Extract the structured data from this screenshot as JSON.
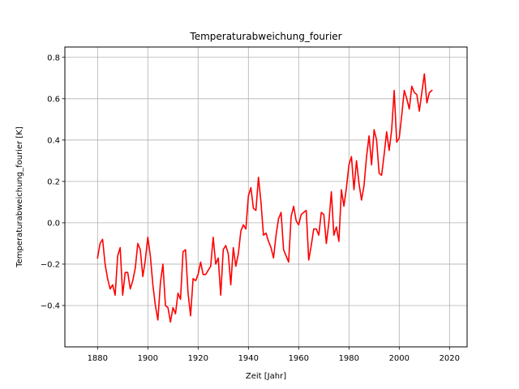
{
  "chart_data": {
    "type": "line",
    "title": "Temperaturabweichung_fourier",
    "xlabel": "Zeit [Jahr]",
    "ylabel": "Temperaturabweichung_fourier [K]",
    "xlim": [
      1867,
      2027
    ],
    "ylim": [
      -0.6,
      0.85
    ],
    "xticks": [
      1880,
      1900,
      1920,
      1940,
      1960,
      1980,
      2000,
      2020
    ],
    "yticks": [
      -0.4,
      -0.2,
      0.0,
      0.2,
      0.4,
      0.6,
      0.8
    ],
    "xtick_labels": [
      "1880",
      "1900",
      "1920",
      "1940",
      "1960",
      "1980",
      "2000",
      "2020"
    ],
    "ytick_labels": [
      "−0.4",
      "−0.2",
      "0.0",
      "0.2",
      "0.4",
      "0.6",
      "0.8"
    ],
    "grid": true,
    "line_color": "#ff0000",
    "x": [
      1880,
      1881,
      1882,
      1883,
      1884,
      1885,
      1886,
      1887,
      1888,
      1889,
      1890,
      1891,
      1892,
      1893,
      1894,
      1895,
      1896,
      1897,
      1898,
      1899,
      1900,
      1901,
      1902,
      1903,
      1904,
      1905,
      1906,
      1907,
      1908,
      1909,
      1910,
      1911,
      1912,
      1913,
      1914,
      1915,
      1916,
      1917,
      1918,
      1919,
      1920,
      1921,
      1922,
      1923,
      1924,
      1925,
      1926,
      1927,
      1928,
      1929,
      1930,
      1931,
      1932,
      1933,
      1934,
      1935,
      1936,
      1937,
      1938,
      1939,
      1940,
      1941,
      1942,
      1943,
      1944,
      1945,
      1946,
      1947,
      1948,
      1949,
      1950,
      1951,
      1952,
      1953,
      1954,
      1955,
      1956,
      1957,
      1958,
      1959,
      1960,
      1961,
      1962,
      1963,
      1964,
      1965,
      1966,
      1967,
      1968,
      1969,
      1970,
      1971,
      1972,
      1973,
      1974,
      1975,
      1976,
      1977,
      1978,
      1979,
      1980,
      1981,
      1982,
      1983,
      1984,
      1985,
      1986,
      1987,
      1988,
      1989,
      1990,
      1991,
      1992,
      1993,
      1994,
      1995,
      1996,
      1997,
      1998,
      1999,
      2000,
      2001,
      2002,
      2003,
      2004,
      2005,
      2006,
      2007,
      2008,
      2009,
      2010,
      2011,
      2012,
      2013
    ],
    "values": [
      -0.17,
      -0.1,
      -0.08,
      -0.2,
      -0.27,
      -0.32,
      -0.3,
      -0.35,
      -0.16,
      -0.12,
      -0.35,
      -0.24,
      -0.24,
      -0.32,
      -0.28,
      -0.22,
      -0.1,
      -0.13,
      -0.26,
      -0.18,
      -0.07,
      -0.16,
      -0.3,
      -0.4,
      -0.47,
      -0.29,
      -0.2,
      -0.4,
      -0.41,
      -0.48,
      -0.41,
      -0.44,
      -0.34,
      -0.37,
      -0.14,
      -0.13,
      -0.34,
      -0.45,
      -0.27,
      -0.28,
      -0.25,
      -0.19,
      -0.25,
      -0.25,
      -0.23,
      -0.21,
      -0.07,
      -0.2,
      -0.17,
      -0.35,
      -0.13,
      -0.11,
      -0.15,
      -0.3,
      -0.12,
      -0.21,
      -0.15,
      -0.04,
      -0.01,
      -0.03,
      0.13,
      0.17,
      0.07,
      0.06,
      0.22,
      0.1,
      -0.06,
      -0.05,
      -0.09,
      -0.12,
      -0.17,
      -0.06,
      0.02,
      0.05,
      -0.13,
      -0.16,
      -0.19,
      0.03,
      0.08,
      0.01,
      -0.01,
      0.04,
      0.05,
      0.06,
      -0.18,
      -0.11,
      -0.03,
      -0.03,
      -0.06,
      0.05,
      0.04,
      -0.1,
      0.0,
      0.15,
      -0.06,
      -0.02,
      -0.09,
      0.16,
      0.08,
      0.17,
      0.28,
      0.32,
      0.16,
      0.3,
      0.19,
      0.11,
      0.18,
      0.32,
      0.42,
      0.28,
      0.45,
      0.4,
      0.24,
      0.23,
      0.33,
      0.44,
      0.35,
      0.45,
      0.64,
      0.39,
      0.41,
      0.52,
      0.64,
      0.6,
      0.55,
      0.66,
      0.63,
      0.62,
      0.54,
      0.63,
      0.72,
      0.58,
      0.63,
      0.64
    ]
  }
}
